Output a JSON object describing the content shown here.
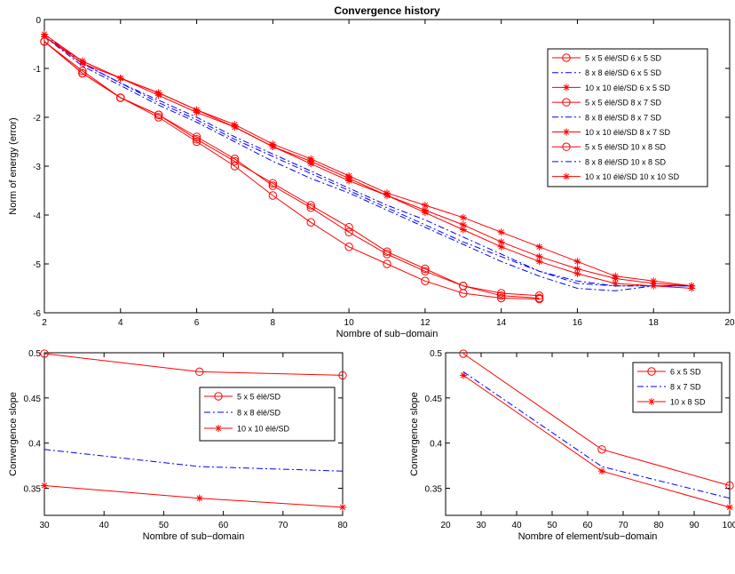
{
  "chart_data": [
    {
      "type": "line",
      "title": "Convergence history",
      "xlabel": "Nombre of sub−domain",
      "ylabel": "Norm of energy (error)",
      "xlim": [
        2,
        20
      ],
      "ylim": [
        -6,
        0
      ],
      "xticks": [
        2,
        4,
        6,
        8,
        10,
        12,
        14,
        16,
        18,
        20
      ],
      "yticks": [
        -6,
        -5,
        -4,
        -3,
        -2,
        -1,
        0
      ],
      "grid": false,
      "legend_position": "top-right",
      "series": [
        {
          "name": "5 x 5 élé/SD 6 x 5 SD",
          "style": "circle",
          "color": "#ff0000",
          "x": [
            2,
            3,
            4,
            5,
            6,
            7,
            8,
            9,
            10,
            11,
            12,
            13,
            14,
            15
          ],
          "y": [
            -0.45,
            -1.05,
            -1.6,
            -1.95,
            -2.45,
            -2.9,
            -3.35,
            -3.8,
            -4.25,
            -4.75,
            -5.1,
            -5.45,
            -5.6,
            -5.65
          ]
        },
        {
          "name": "8 x 8 élé/SD 6 x 5 SD",
          "style": "dashdot",
          "color": "#0000ff",
          "x": [
            2,
            3,
            4,
            5,
            6,
            7,
            8,
            9,
            10,
            11,
            12,
            13,
            14,
            15,
            16,
            17,
            18,
            19
          ],
          "y": [
            -0.3,
            -0.9,
            -1.3,
            -1.65,
            -2.0,
            -2.4,
            -2.75,
            -3.1,
            -3.45,
            -3.8,
            -4.1,
            -4.45,
            -4.8,
            -5.15,
            -5.4,
            -5.45,
            -5.45,
            -5.45
          ]
        },
        {
          "name": "10 x 10 élé/SD 6 x 5 SD",
          "style": "star",
          "color": "#ff0000",
          "x": [
            2,
            3,
            4,
            5,
            6,
            7,
            8,
            9,
            10,
            11,
            12,
            13,
            14,
            15,
            16,
            17,
            18,
            19
          ],
          "y": [
            -0.3,
            -0.85,
            -1.2,
            -1.5,
            -1.85,
            -2.15,
            -2.55,
            -2.85,
            -3.2,
            -3.55,
            -3.8,
            -4.05,
            -4.35,
            -4.65,
            -4.95,
            -5.25,
            -5.35,
            -5.45
          ]
        },
        {
          "name": "5 x 5 élé/SD 8 x 7 SD",
          "style": "circle",
          "color": "#ff0000",
          "x": [
            2,
            3,
            4,
            5,
            6,
            7,
            8,
            9,
            10,
            11,
            12,
            13,
            14,
            15
          ],
          "y": [
            -0.45,
            -1.1,
            -1.6,
            -2.0,
            -2.5,
            -3.0,
            -3.6,
            -4.15,
            -4.65,
            -5.0,
            -5.35,
            -5.6,
            -5.7,
            -5.72
          ]
        },
        {
          "name": "8 x 8 élé/SD  8 x 7 SD",
          "style": "dashdot",
          "color": "#0000ff",
          "x": [
            2,
            3,
            4,
            5,
            6,
            7,
            8,
            9,
            10,
            11,
            12,
            13,
            14,
            15,
            16,
            17,
            18,
            19
          ],
          "y": [
            -0.35,
            -0.95,
            -1.35,
            -1.75,
            -2.1,
            -2.5,
            -2.9,
            -3.25,
            -3.55,
            -3.9,
            -4.25,
            -4.6,
            -4.95,
            -5.25,
            -5.5,
            -5.55,
            -5.45,
            -5.45
          ]
        },
        {
          "name": "10 x 10 élé/SD 8 x 7 SD",
          "style": "star",
          "color": "#ff0000",
          "x": [
            2,
            3,
            4,
            5,
            6,
            7,
            8,
            9,
            10,
            11,
            12,
            13,
            14,
            15,
            16,
            17,
            18,
            19
          ],
          "y": [
            -0.35,
            -0.85,
            -1.2,
            -1.55,
            -1.9,
            -2.2,
            -2.6,
            -2.95,
            -3.3,
            -3.6,
            -3.9,
            -4.2,
            -4.55,
            -4.85,
            -5.1,
            -5.3,
            -5.4,
            -5.45
          ]
        },
        {
          "name": "5 x 5 élé/SD 10 x 8 SD",
          "style": "circle",
          "color": "#ff0000",
          "x": [
            2,
            3,
            4,
            5,
            6,
            7,
            8,
            9,
            10,
            11,
            12,
            13,
            14,
            15
          ],
          "y": [
            -0.45,
            -1.1,
            -1.6,
            -1.95,
            -2.4,
            -2.85,
            -3.4,
            -3.85,
            -4.35,
            -4.8,
            -5.15,
            -5.45,
            -5.65,
            -5.7
          ]
        },
        {
          "name": "8 x 8 élé/SD  10 x 8 SD",
          "style": "dashdot",
          "color": "#0000ff",
          "x": [
            2,
            3,
            4,
            5,
            6,
            7,
            8,
            9,
            10,
            11,
            12,
            13,
            14,
            15,
            16,
            17,
            18,
            19
          ],
          "y": [
            -0.35,
            -0.9,
            -1.3,
            -1.7,
            -2.05,
            -2.45,
            -2.8,
            -3.15,
            -3.5,
            -3.85,
            -4.2,
            -4.55,
            -4.85,
            -5.15,
            -5.35,
            -5.45,
            -5.45,
            -5.45
          ]
        },
        {
          "name": "10 x 10  élé/SD 10 x 10 SD",
          "style": "star",
          "color": "#ff0000",
          "x": [
            2,
            3,
            4,
            5,
            6,
            7,
            8,
            9,
            10,
            11,
            12,
            13,
            14,
            15,
            16,
            17,
            18,
            19
          ],
          "y": [
            -0.35,
            -0.9,
            -1.2,
            -1.5,
            -1.85,
            -2.2,
            -2.6,
            -2.9,
            -3.25,
            -3.6,
            -3.95,
            -4.3,
            -4.65,
            -4.95,
            -5.2,
            -5.4,
            -5.45,
            -5.5
          ]
        }
      ]
    },
    {
      "type": "line",
      "title": "",
      "xlabel": "Nombre of sub−domain",
      "ylabel": "Convergence slope",
      "xlim": [
        30,
        80
      ],
      "ylim": [
        0.32,
        0.5
      ],
      "xticks": [
        30,
        40,
        50,
        60,
        70,
        80
      ],
      "yticks": [
        0.35,
        0.4,
        0.45,
        0.5
      ],
      "grid": false,
      "legend_position": "center-right",
      "series": [
        {
          "name": "5 x 5 élé/SD",
          "style": "circle",
          "color": "#ff0000",
          "x": [
            30,
            56,
            80
          ],
          "y": [
            0.499,
            0.479,
            0.475
          ]
        },
        {
          "name": "8 x 8 élé/SD",
          "style": "dashdot",
          "color": "#0000ff",
          "x": [
            30,
            56,
            80
          ],
          "y": [
            0.393,
            0.374,
            0.369
          ]
        },
        {
          "name": "10 x 10 élé/SD",
          "style": "star",
          "color": "#ff0000",
          "x": [
            30,
            56,
            80
          ],
          "y": [
            0.353,
            0.339,
            0.329
          ]
        }
      ]
    },
    {
      "type": "line",
      "title": "",
      "xlabel": "Nombre of element/sub−domain",
      "ylabel": "Convergence slope",
      "xlim": [
        20,
        100
      ],
      "ylim": [
        0.32,
        0.5
      ],
      "xticks": [
        20,
        30,
        40,
        50,
        60,
        70,
        80,
        90,
        100
      ],
      "yticks": [
        0.35,
        0.4,
        0.45,
        0.5
      ],
      "grid": false,
      "legend_position": "top-right",
      "series": [
        {
          "name": "6 x 5 SD",
          "style": "circle",
          "color": "#ff0000",
          "x": [
            25,
            64,
            100
          ],
          "y": [
            0.499,
            0.393,
            0.353
          ]
        },
        {
          "name": "8 x 7 SD",
          "style": "dashdot",
          "color": "#0000ff",
          "x": [
            25,
            64,
            100
          ],
          "y": [
            0.479,
            0.374,
            0.339
          ]
        },
        {
          "name": "10 x 8 SD",
          "style": "star",
          "color": "#ff0000",
          "x": [
            25,
            64,
            100
          ],
          "y": [
            0.475,
            0.369,
            0.329
          ]
        }
      ]
    }
  ]
}
